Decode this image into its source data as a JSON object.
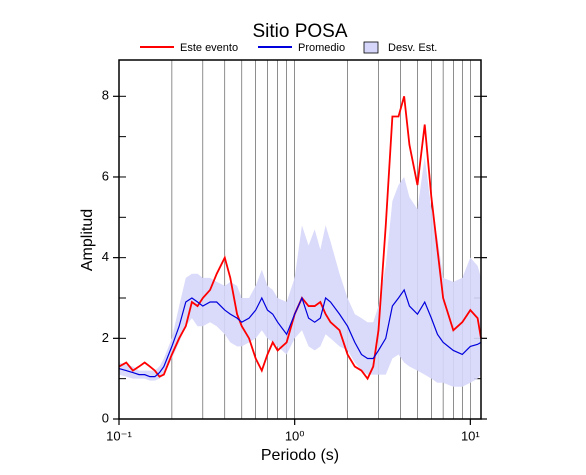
{
  "chart_data": {
    "type": "line",
    "title": "Sitio POSA",
    "xlabel": "Periodo (s)",
    "ylabel": "Amplitud",
    "log_x": true,
    "xlim": [
      0.1,
      11.5
    ],
    "ylim": [
      0,
      8.9
    ],
    "xticks": [
      {
        "value": 0.1,
        "label": "10⁻¹"
      },
      {
        "value": 1,
        "label": "10⁰"
      },
      {
        "value": 10,
        "label": "10¹"
      }
    ],
    "yticks": [
      0,
      2,
      4,
      6,
      8
    ],
    "xgrid": [
      0.2,
      0.3,
      0.4,
      0.5,
      0.6,
      0.7,
      0.8,
      0.9,
      1,
      2,
      3,
      4,
      5,
      6,
      7,
      8,
      9,
      10
    ],
    "ygrid": [
      1,
      2,
      3,
      4,
      5,
      6,
      7,
      8
    ],
    "x": [
      0.1,
      0.11,
      0.12,
      0.13,
      0.14,
      0.15,
      0.16,
      0.17,
      0.18,
      0.2,
      0.22,
      0.24,
      0.26,
      0.28,
      0.3,
      0.33,
      0.36,
      0.4,
      0.43,
      0.47,
      0.5,
      0.55,
      0.6,
      0.65,
      0.7,
      0.75,
      0.8,
      0.9,
      1.0,
      1.1,
      1.2,
      1.3,
      1.4,
      1.5,
      1.6,
      1.8,
      2.0,
      2.2,
      2.4,
      2.6,
      2.8,
      3.0,
      3.3,
      3.6,
      3.9,
      4.2,
      4.5,
      5.0,
      5.5,
      6.0,
      6.5,
      7.0,
      8.0,
      9.0,
      10,
      11,
      11.5
    ],
    "series": [
      {
        "name": "Este evento",
        "color": "#ff0000",
        "values": [
          1.3,
          1.4,
          1.2,
          1.3,
          1.4,
          1.3,
          1.2,
          1.05,
          1.1,
          1.6,
          2.0,
          2.3,
          2.9,
          2.8,
          3.0,
          3.2,
          3.6,
          4.0,
          3.5,
          2.6,
          2.3,
          2.0,
          1.5,
          1.2,
          1.6,
          1.9,
          1.7,
          1.9,
          2.6,
          3.0,
          2.8,
          2.8,
          2.9,
          2.6,
          2.4,
          2.2,
          1.6,
          1.3,
          1.2,
          1.0,
          1.3,
          2.2,
          4.8,
          7.5,
          7.5,
          8.0,
          6.8,
          5.8,
          7.3,
          5.5,
          4.2,
          3.0,
          2.2,
          2.4,
          2.7,
          2.5,
          2.0
        ]
      },
      {
        "name": "Promedio",
        "color": "#0000dd",
        "values": [
          1.25,
          1.2,
          1.15,
          1.1,
          1.1,
          1.05,
          1.05,
          1.15,
          1.3,
          1.8,
          2.3,
          2.9,
          3.0,
          2.9,
          2.8,
          2.9,
          2.9,
          2.7,
          2.6,
          2.5,
          2.4,
          2.5,
          2.7,
          3.0,
          2.7,
          2.6,
          2.4,
          2.1,
          2.6,
          3.0,
          2.5,
          2.4,
          2.5,
          3.0,
          2.9,
          2.6,
          2.3,
          1.9,
          1.6,
          1.5,
          1.5,
          1.7,
          2.0,
          2.8,
          3.0,
          3.2,
          2.8,
          2.6,
          2.9,
          2.5,
          2.1,
          1.9,
          1.7,
          1.6,
          1.8,
          1.85,
          1.9
        ]
      },
      {
        "name": "Desv. Est.",
        "color": "#d6d6fa",
        "upper": [
          1.4,
          1.35,
          1.3,
          1.2,
          1.2,
          1.2,
          1.2,
          1.3,
          1.5,
          2.0,
          2.8,
          3.5,
          3.6,
          3.6,
          3.5,
          3.5,
          3.4,
          3.3,
          3.4,
          3.3,
          3.0,
          3.0,
          3.3,
          3.7,
          3.3,
          3.2,
          3.0,
          2.9,
          3.5,
          4.8,
          4.3,
          4.7,
          4.2,
          4.8,
          4.4,
          3.6,
          3.0,
          2.6,
          2.5,
          2.4,
          2.4,
          2.8,
          3.8,
          5.4,
          5.8,
          6.0,
          5.5,
          5.2,
          6.5,
          5.2,
          4.5,
          3.5,
          3.4,
          3.5,
          4.0,
          3.8,
          3.5
        ],
        "lower": [
          1.1,
          1.05,
          1.0,
          1.0,
          1.0,
          0.95,
          0.95,
          1.0,
          1.1,
          1.5,
          1.9,
          2.3,
          2.5,
          2.3,
          2.3,
          2.4,
          2.3,
          2.1,
          1.9,
          1.8,
          1.8,
          1.9,
          2.0,
          2.2,
          2.0,
          1.9,
          1.8,
          1.6,
          2.0,
          2.2,
          1.8,
          1.7,
          1.8,
          2.1,
          2.0,
          1.8,
          1.7,
          1.4,
          1.2,
          1.1,
          1.1,
          1.1,
          1.1,
          1.5,
          1.6,
          1.4,
          1.3,
          1.2,
          1.1,
          1.0,
          0.9,
          0.9,
          0.8,
          0.8,
          0.9,
          1.0,
          1.1
        ]
      }
    ]
  }
}
